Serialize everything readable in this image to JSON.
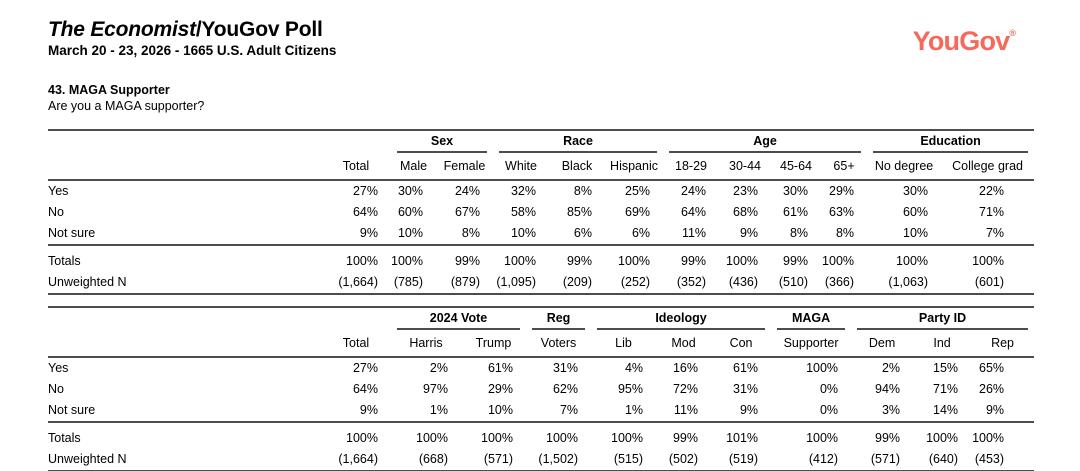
{
  "header": {
    "title_em": "The Economist",
    "title_rest": "/YouGov Poll",
    "subtitle": "March 20 - 23, 2026 - 1665 U.S. Adult Citizens"
  },
  "logo": {
    "text": "YouGov",
    "reg_mark": "®",
    "color": "#f8685a"
  },
  "question": {
    "number": "43. MAGA Supporter",
    "text": "Are you a MAGA supporter?"
  },
  "tables": [
    {
      "name": "demographics",
      "groups": [
        {
          "label": "",
          "span": 1
        },
        {
          "label": "Sex",
          "span": 2
        },
        {
          "label": "Race",
          "span": 3
        },
        {
          "label": "Age",
          "span": 4
        },
        {
          "label": "Education",
          "span": 2
        }
      ],
      "columns": [
        "Total",
        "Male",
        "Female",
        "White",
        "Black",
        "Hispanic",
        "18-29",
        "30-44",
        "45-64",
        "65+",
        "No degree",
        "College grad"
      ],
      "rows": [
        {
          "label": "Yes",
          "values": [
            "27%",
            "30%",
            "24%",
            "32%",
            "8%",
            "25%",
            "24%",
            "23%",
            "30%",
            "29%",
            "30%",
            "22%"
          ]
        },
        {
          "label": "No",
          "values": [
            "64%",
            "60%",
            "67%",
            "58%",
            "85%",
            "69%",
            "64%",
            "68%",
            "61%",
            "63%",
            "60%",
            "71%"
          ]
        },
        {
          "label": "Not sure",
          "values": [
            "9%",
            "10%",
            "8%",
            "10%",
            "6%",
            "6%",
            "11%",
            "9%",
            "8%",
            "8%",
            "10%",
            "7%"
          ]
        }
      ],
      "summary_rows": [
        {
          "label": "Totals",
          "values": [
            "100%",
            "100%",
            "99%",
            "100%",
            "99%",
            "100%",
            "99%",
            "100%",
            "99%",
            "100%",
            "100%",
            "100%"
          ]
        },
        {
          "label": "Unweighted N",
          "values": [
            "(1,664)",
            "(785)",
            "(879)",
            "(1,095)",
            "(209)",
            "(252)",
            "(352)",
            "(436)",
            "(510)",
            "(366)",
            "(1,063)",
            "(601)"
          ]
        }
      ]
    },
    {
      "name": "politics",
      "groups": [
        {
          "label": "",
          "span": 1
        },
        {
          "label": "2024 Vote",
          "span": 2
        },
        {
          "label": "Reg",
          "span": 1
        },
        {
          "label": "Ideology",
          "span": 3
        },
        {
          "label": "MAGA",
          "span": 1
        },
        {
          "label": "Party ID",
          "span": 3
        }
      ],
      "columns": [
        "Total",
        "Harris",
        "Trump",
        "Voters",
        "Lib",
        "Mod",
        "Con",
        "Supporter",
        "Dem",
        "Ind",
        "Rep"
      ],
      "rows": [
        {
          "label": "Yes",
          "values": [
            "27%",
            "2%",
            "61%",
            "31%",
            "4%",
            "16%",
            "61%",
            "100%",
            "2%",
            "15%",
            "65%"
          ]
        },
        {
          "label": "No",
          "values": [
            "64%",
            "97%",
            "29%",
            "62%",
            "95%",
            "72%",
            "31%",
            "0%",
            "94%",
            "71%",
            "26%"
          ]
        },
        {
          "label": "Not sure",
          "values": [
            "9%",
            "1%",
            "10%",
            "7%",
            "1%",
            "11%",
            "9%",
            "0%",
            "3%",
            "14%",
            "9%"
          ]
        }
      ],
      "summary_rows": [
        {
          "label": "Totals",
          "values": [
            "100%",
            "100%",
            "100%",
            "100%",
            "100%",
            "99%",
            "101%",
            "100%",
            "99%",
            "100%",
            "100%"
          ]
        },
        {
          "label": "Unweighted N",
          "values": [
            "(1,664)",
            "(668)",
            "(571)",
            "(1,502)",
            "(515)",
            "(502)",
            "(519)",
            "(412)",
            "(571)",
            "(640)",
            "(453)"
          ]
        }
      ]
    }
  ]
}
